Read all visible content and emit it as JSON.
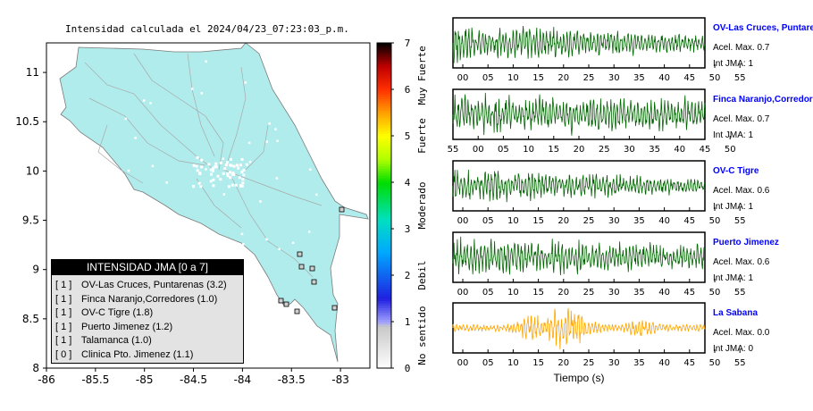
{
  "chart_data": [
    {
      "type": "map",
      "title": "Intensidad calculada el 2024/04/23_07:23:03_p.m.",
      "x_ticks": [
        "-86",
        "-85.5",
        "-85",
        "-84.5",
        "-84",
        "-83.5",
        "-83"
      ],
      "y_ticks": [
        "11",
        "10.5",
        "10",
        "9.5",
        "9",
        "8.5",
        "8"
      ],
      "xlim": [
        -86,
        -82.7
      ],
      "ylim": [
        8,
        11.3
      ],
      "land_color": "#b0ecec",
      "legend": {
        "title": "INTENSIDAD JMA [0 a 7]",
        "entries": [
          {
            "intensity": "[ 1 ]",
            "station": "OV-Las Cruces, Puntarenas (3.2)"
          },
          {
            "intensity": "[ 1 ]",
            "station": "Finca Naranjo,Corredores (1.0)"
          },
          {
            "intensity": "[ 1 ]",
            "station": "OV-C Tigre (1.8)"
          },
          {
            "intensity": "[ 1 ]",
            "station": "Puerto Jimenez (1.2)"
          },
          {
            "intensity": "[ 1 ]",
            "station": "Talamanca (1.0)"
          },
          {
            "intensity": "[ 0 ]",
            "station": "Clinica Pto. Jimenez (1.1)"
          }
        ]
      }
    },
    {
      "type": "heatmap",
      "title": "",
      "colorbar_ticks": [
        "0",
        "1",
        "2",
        "3",
        "4",
        "5",
        "6",
        "7"
      ],
      "range": [
        0,
        7
      ],
      "labels": [
        "No sentido",
        "Debil",
        "Moderado",
        "Fuerte",
        "Muy Fuerte"
      ]
    },
    {
      "type": "line",
      "xlabel": "Tiempo (s)",
      "traces": [
        {
          "name": "OV-Las Cruces, Puntarenas",
          "max_label": "Acel. Max. 0.7",
          "jma_label": "Int JMA: 1",
          "color": "#006400",
          "amp_decay": 0.55,
          "ticks": [
            "00",
            "05",
            "10",
            "15",
            "20",
            "25",
            "30",
            "35",
            "40",
            "45",
            "50",
            "55"
          ]
        },
        {
          "name": "Finca Naranjo,Corredores",
          "max_label": "Acel. Max. 0.7",
          "jma_label": "Int JMA: 1",
          "color": "#006400",
          "amp_decay": 0.15,
          "ticks": [
            "55",
            "00",
            "05",
            "10",
            "15",
            "20",
            "25",
            "30",
            "35",
            "40",
            "45",
            "50"
          ]
        },
        {
          "name": "OV-C Tigre",
          "max_label": "Acel. Max. 0.6",
          "jma_label": "Int JMA: 1",
          "color": "#006400",
          "amp_decay": 0.6,
          "ticks": [
            "00",
            "05",
            "10",
            "15",
            "20",
            "25",
            "30",
            "35",
            "40",
            "45",
            "50",
            "55"
          ]
        },
        {
          "name": "Puerto Jimenez",
          "max_label": "Acel. Max. 0.6",
          "jma_label": "Int JMA: 1",
          "color": "#006400",
          "amp_decay": 0.3,
          "ticks": [
            "00",
            "05",
            "10",
            "15",
            "20",
            "25",
            "30",
            "35",
            "40",
            "45",
            "50",
            "55"
          ]
        },
        {
          "name": "La Sabana",
          "max_label": "Acel. Max. 0.0",
          "jma_label": "Int JMA: 0",
          "color": "#ffa500",
          "amp_decay": 0.0,
          "ticks": [
            "00",
            "05",
            "10",
            "15",
            "20",
            "25",
            "30",
            "35",
            "40",
            "45",
            "50",
            "55"
          ]
        }
      ]
    }
  ]
}
